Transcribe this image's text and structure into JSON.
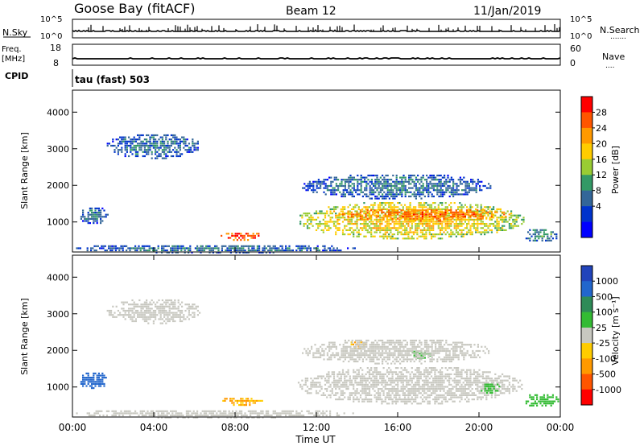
{
  "header": {
    "site": "Goose Bay (fitACF)",
    "beam": "Beam 12",
    "date": "11/Jan/2019"
  },
  "nsky_panel": {
    "left_label": "N.Sky",
    "right_label": "N.Search",
    "left_ticks": [
      "10^5",
      "10^0"
    ],
    "right_ticks": [
      "10^5",
      "10^0"
    ],
    "right_label_dots": "......."
  },
  "freq_panel": {
    "left_label_line1": "Freq.",
    "left_label_line2": "[MHz]",
    "right_label": "Nave",
    "left_ticks": [
      "18",
      "8"
    ],
    "right_ticks": [
      "60",
      "0"
    ],
    "right_label_dots": "...."
  },
  "cpid": {
    "label": "CPID",
    "value": "tau (fast) 503"
  },
  "time_axis": {
    "ticks": [
      "00:00",
      "04:00",
      "08:00",
      "12:00",
      "16:00",
      "20:00",
      "00:00"
    ],
    "label": "Time UT"
  },
  "power_colorbar": {
    "label": "Power [dB]",
    "ticks": [
      "28",
      "24",
      "20",
      "16",
      "12",
      "8",
      "4"
    ],
    "colors": [
      "#ff0000",
      "#ff5500",
      "#ff9900",
      "#ffcc00",
      "#99cc33",
      "#339966",
      "#336699",
      "#0033cc",
      "#0000ff"
    ]
  },
  "velocity_colorbar": {
    "label": "Velocity [m s⁻¹]",
    "ticks": [
      "1000",
      "500",
      "100",
      "25",
      "-25",
      "-100",
      "-500",
      "-1000"
    ],
    "colors": [
      "#2244bb",
      "#2266cc",
      "#2e8b57",
      "#33bb33",
      "#c8c8c0",
      "#ffcc00",
      "#ff9900",
      "#ff5500",
      "#ff0000"
    ]
  },
  "chart_data": [
    {
      "type": "heatmap",
      "title": "Power",
      "xlabel": "Time UT",
      "ylabel": "Slant Range [km]",
      "xlim": [
        0,
        24
      ],
      "ylim": [
        180,
        4600
      ],
      "yticks": [
        "1000",
        "2000",
        "3000",
        "4000"
      ],
      "colorbar": "Power [dB]",
      "regions": [
        {
          "t": [
            1.6,
            6.3
          ],
          "r": [
            2750,
            3450
          ],
          "level": 8
        },
        {
          "t": [
            0.3,
            1.7
          ],
          "r": [
            950,
            1450
          ],
          "level": 8
        },
        {
          "t": [
            7.2,
            9.3
          ],
          "r": [
            520,
            760
          ],
          "level": 26
        },
        {
          "t": [
            11.0,
            22.2
          ],
          "r": [
            550,
            1600
          ],
          "level": 18
        },
        {
          "t": [
            13.0,
            21.5
          ],
          "r": [
            1050,
            1400
          ],
          "level": 24
        },
        {
          "t": [
            11.2,
            20.6
          ],
          "r": [
            1650,
            2350
          ],
          "level": 8
        },
        {
          "t": [
            22.2,
            23.9
          ],
          "r": [
            460,
            860
          ],
          "level": 10
        },
        {
          "t": [
            0.0,
            14.0
          ],
          "r": [
            180,
            420
          ],
          "level": 8
        }
      ]
    },
    {
      "type": "heatmap",
      "title": "Velocity",
      "xlabel": "Time UT",
      "ylabel": "Slant Range [km]",
      "xlim": [
        0,
        24
      ],
      "ylim": [
        180,
        4600
      ],
      "yticks": [
        "1000",
        "2000",
        "3000",
        "4000"
      ],
      "colorbar": "Velocity [m s⁻¹]",
      "regions": [
        {
          "t": [
            1.6,
            6.3
          ],
          "r": [
            2750,
            3450
          ],
          "level": 0
        },
        {
          "t": [
            0.3,
            1.7
          ],
          "r": [
            950,
            1450
          ],
          "level": 500
        },
        {
          "t": [
            7.2,
            9.3
          ],
          "r": [
            520,
            760
          ],
          "level": -100
        },
        {
          "t": [
            11.0,
            22.2
          ],
          "r": [
            550,
            1600
          ],
          "level": 0
        },
        {
          "t": [
            13.6,
            14.4
          ],
          "r": [
            2050,
            2300
          ],
          "level": -100
        },
        {
          "t": [
            16.6,
            17.6
          ],
          "r": [
            1800,
            2050
          ],
          "level": 100
        },
        {
          "t": [
            20.0,
            21.0
          ],
          "r": [
            850,
            1150
          ],
          "level": 100
        },
        {
          "t": [
            22.2,
            23.9
          ],
          "r": [
            460,
            860
          ],
          "level": 100
        },
        {
          "t": [
            11.2,
            20.6
          ],
          "r": [
            1650,
            2350
          ],
          "level": 0
        },
        {
          "t": [
            0.0,
            14.0
          ],
          "r": [
            180,
            420
          ],
          "level": 0
        }
      ]
    }
  ]
}
